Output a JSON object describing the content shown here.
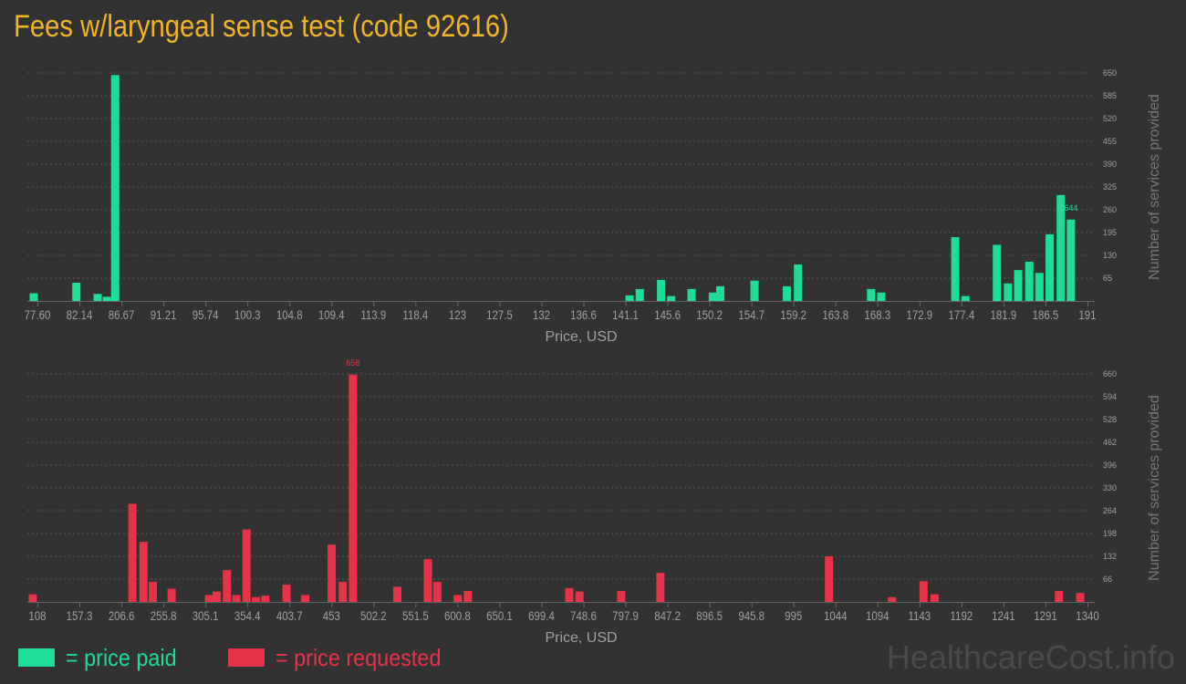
{
  "title": "Fees w/laryngeal sense test (code 92616)",
  "colors": {
    "paid": "#1fdc96",
    "requested": "#e63347",
    "grid": "#555555",
    "axis_text": "#a0a0a0"
  },
  "legend": {
    "paid_label": "= price paid",
    "requested_label": "= price requested"
  },
  "brand": "HealthcareCost.info",
  "chart_data": [
    {
      "type": "bar",
      "series_color": "paid",
      "xlabel": "Price, USD",
      "ylabel": "Number of services provided",
      "x_ticks": [
        "77.60",
        "82.14",
        "86.67",
        "91.21",
        "95.74",
        "100.3",
        "104.8",
        "109.4",
        "113.9",
        "118.4",
        "123",
        "127.5",
        "132",
        "136.6",
        "141.1",
        "145.6",
        "150.2",
        "154.7",
        "159.2",
        "163.8",
        "168.3",
        "172.9",
        "177.4",
        "181.9",
        "186.5",
        "191"
      ],
      "xlim": [
        77.6,
        191
      ],
      "y_ticks": [
        65,
        130,
        195,
        260,
        325,
        390,
        455,
        520,
        585,
        650
      ],
      "ylim": [
        0,
        650
      ],
      "peak_label": "644",
      "bars": [
        {
          "x": 77.8,
          "y": 22
        },
        {
          "x": 82.4,
          "y": 52
        },
        {
          "x": 84.7,
          "y": 20
        },
        {
          "x": 85.7,
          "y": 12
        },
        {
          "x": 86.6,
          "y": 644
        },
        {
          "x": 142.2,
          "y": 16
        },
        {
          "x": 143.3,
          "y": 34
        },
        {
          "x": 145.6,
          "y": 60
        },
        {
          "x": 146.7,
          "y": 14
        },
        {
          "x": 148.9,
          "y": 34
        },
        {
          "x": 151.2,
          "y": 24
        },
        {
          "x": 152.0,
          "y": 42
        },
        {
          "x": 155.7,
          "y": 58
        },
        {
          "x": 159.2,
          "y": 42
        },
        {
          "x": 160.4,
          "y": 104
        },
        {
          "x": 168.3,
          "y": 34
        },
        {
          "x": 169.4,
          "y": 24
        },
        {
          "x": 177.4,
          "y": 182
        },
        {
          "x": 178.5,
          "y": 14
        },
        {
          "x": 181.9,
          "y": 160
        },
        {
          "x": 183.1,
          "y": 50
        },
        {
          "x": 184.2,
          "y": 88
        },
        {
          "x": 185.4,
          "y": 112
        },
        {
          "x": 186.5,
          "y": 80
        },
        {
          "x": 187.6,
          "y": 190
        },
        {
          "x": 188.8,
          "y": 302
        },
        {
          "x": 189.9,
          "y": 232
        }
      ]
    },
    {
      "type": "bar",
      "series_color": "requested",
      "xlabel": "Price, USD",
      "ylabel": "Number of services provided",
      "x_ticks": [
        "108",
        "157.3",
        "206.6",
        "255.8",
        "305.1",
        "354.4",
        "403.7",
        "453",
        "502.2",
        "551.5",
        "600.8",
        "650.1",
        "699.4",
        "748.6",
        "797.9",
        "847.2",
        "896.5",
        "945.8",
        "995",
        "1044",
        "1094",
        "1143",
        "1192",
        "1241",
        "1291",
        "1340"
      ],
      "xlim": [
        108,
        1340
      ],
      "y_ticks": [
        66,
        132,
        198,
        264,
        330,
        396,
        462,
        528,
        594,
        660
      ],
      "ylim": [
        0,
        660
      ],
      "peak_label": "658",
      "bars": [
        {
          "x": 109,
          "y": 22
        },
        {
          "x": 226,
          "y": 284
        },
        {
          "x": 239,
          "y": 174
        },
        {
          "x": 250,
          "y": 58
        },
        {
          "x": 272,
          "y": 38
        },
        {
          "x": 316,
          "y": 20
        },
        {
          "x": 325,
          "y": 30
        },
        {
          "x": 337,
          "y": 92
        },
        {
          "x": 348,
          "y": 20
        },
        {
          "x": 360,
          "y": 210
        },
        {
          "x": 371,
          "y": 14
        },
        {
          "x": 382,
          "y": 18
        },
        {
          "x": 407,
          "y": 50
        },
        {
          "x": 429,
          "y": 20
        },
        {
          "x": 460,
          "y": 166
        },
        {
          "x": 473,
          "y": 58
        },
        {
          "x": 485,
          "y": 658
        },
        {
          "x": 537,
          "y": 44
        },
        {
          "x": 573,
          "y": 124
        },
        {
          "x": 584,
          "y": 58
        },
        {
          "x": 608,
          "y": 20
        },
        {
          "x": 620,
          "y": 32
        },
        {
          "x": 739,
          "y": 40
        },
        {
          "x": 751,
          "y": 30
        },
        {
          "x": 800,
          "y": 32
        },
        {
          "x": 846,
          "y": 84
        },
        {
          "x": 1044,
          "y": 132
        },
        {
          "x": 1118,
          "y": 14
        },
        {
          "x": 1155,
          "y": 60
        },
        {
          "x": 1168,
          "y": 22
        },
        {
          "x": 1314,
          "y": 32
        },
        {
          "x": 1339,
          "y": 26
        }
      ]
    }
  ]
}
